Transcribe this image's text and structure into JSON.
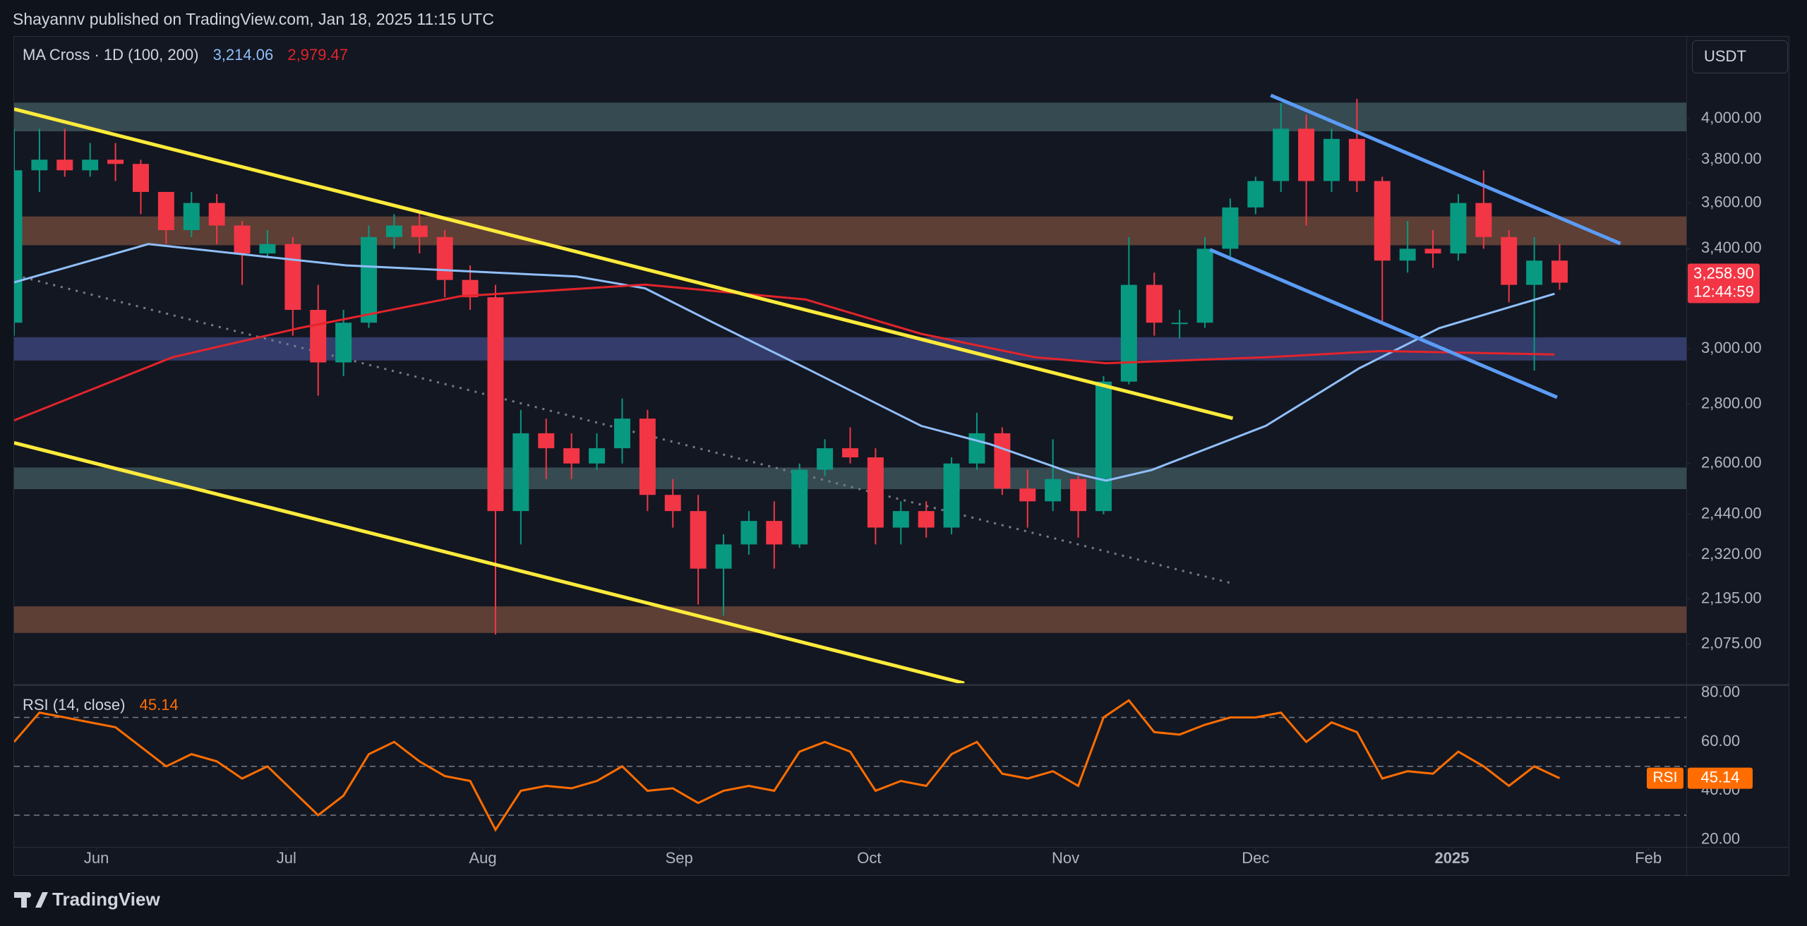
{
  "header": {
    "text": "Shayannv published on TradingView.com, Jan 18, 2025 11:15 UTC"
  },
  "footer": {
    "brand": "TradingView"
  },
  "chart_data": [
    {
      "type": "candlestick",
      "title": "MA Cross · 1D (100, 200)",
      "currency": "USDT",
      "log_scale": true,
      "grid": false,
      "up_color": "#089981",
      "down_color": "#f23645",
      "xlim": [
        0,
        66
      ],
      "xticks": [
        {
          "value": 3.25,
          "label": "Jun"
        },
        {
          "value": 10.75,
          "label": "Jul"
        },
        {
          "value": 18.5,
          "label": "Aug"
        },
        {
          "value": 26.25,
          "label": "Sep"
        },
        {
          "value": 33.75,
          "label": "Oct"
        },
        {
          "value": 41.5,
          "label": "Nov"
        },
        {
          "value": 49,
          "label": "Dec"
        },
        {
          "value": 56.75,
          "label": "2025"
        },
        {
          "value": 64.5,
          "label": "Feb"
        }
      ],
      "ylim": [
        1976,
        4431
      ],
      "yticks": [
        {
          "value": 4000,
          "label": "4,000.00"
        },
        {
          "value": 3800,
          "label": "3,800.00"
        },
        {
          "value": 3600,
          "label": "3,600.00"
        },
        {
          "value": 3400,
          "label": "3,400.00"
        },
        {
          "value": 3000,
          "label": "3,000.00"
        },
        {
          "value": 2800,
          "label": "2,800.00"
        },
        {
          "value": 2600,
          "label": "2,600.00"
        },
        {
          "value": 2440,
          "label": "2,440.00"
        },
        {
          "value": 2320,
          "label": "2,320.00"
        },
        {
          "value": 2195,
          "label": "2,195.00"
        },
        {
          "value": 2075,
          "label": "2,075.00"
        }
      ],
      "open": [
        3100,
        3750,
        3800,
        3750,
        3800,
        3780,
        3650,
        3480,
        3600,
        3500,
        3380,
        3420,
        3150,
        2950,
        3100,
        3450,
        3500,
        3450,
        3270,
        3200,
        2450,
        2700,
        2650,
        2600,
        2650,
        2750,
        2500,
        2450,
        2280,
        2350,
        2420,
        2350,
        2580,
        2650,
        2620,
        2400,
        2450,
        2400,
        2600,
        2700,
        2520,
        2480,
        2550,
        2450,
        2880,
        3250,
        3100,
        3100,
        3400,
        3580,
        3700,
        3950,
        3700,
        3900,
        3700,
        3350,
        3400,
        3380,
        3600,
        3450,
        3250,
        3350
      ],
      "high": [
        3950,
        3950,
        3950,
        3880,
        3880,
        3800,
        3650,
        3650,
        3640,
        3520,
        3480,
        3450,
        3250,
        3150,
        3500,
        3550,
        3560,
        3480,
        3330,
        3250,
        2780,
        2750,
        2700,
        2700,
        2820,
        2780,
        2550,
        2500,
        2380,
        2450,
        2480,
        2600,
        2680,
        2720,
        2650,
        2480,
        2480,
        2620,
        2770,
        2720,
        2580,
        2680,
        2560,
        2900,
        3450,
        3300,
        3150,
        3450,
        3620,
        3720,
        4080,
        4020,
        3950,
        4100,
        3720,
        3520,
        3480,
        3640,
        3750,
        3480,
        3450,
        3420
      ],
      "low": [
        3050,
        3650,
        3720,
        3720,
        3700,
        3550,
        3420,
        3450,
        3420,
        3250,
        3360,
        3050,
        2830,
        2900,
        3080,
        3400,
        3380,
        3200,
        3150,
        2100,
        2350,
        2550,
        2550,
        2580,
        2600,
        2450,
        2400,
        2180,
        2150,
        2320,
        2280,
        2340,
        2560,
        2600,
        2350,
        2350,
        2370,
        2380,
        2580,
        2500,
        2400,
        2450,
        2370,
        2440,
        2870,
        3050,
        3040,
        3080,
        3350,
        3550,
        3650,
        3500,
        3650,
        3650,
        3100,
        3300,
        3320,
        3350,
        3400,
        3180,
        2920,
        3230
      ],
      "close": [
        3750,
        3800,
        3750,
        3800,
        3780,
        3650,
        3480,
        3600,
        3500,
        3380,
        3420,
        3150,
        2950,
        3100,
        3450,
        3500,
        3450,
        3270,
        3200,
        2450,
        2700,
        2650,
        2600,
        2650,
        2750,
        2500,
        2450,
        2280,
        2350,
        2420,
        2350,
        2580,
        2650,
        2620,
        2400,
        2450,
        2400,
        2600,
        2700,
        2520,
        2480,
        2550,
        2450,
        2880,
        3250,
        3100,
        3100,
        3400,
        3580,
        3700,
        3950,
        3700,
        3900,
        3700,
        3350,
        3400,
        3380,
        3600,
        3450,
        3250,
        3350,
        3258.9
      ],
      "series": [
        {
          "name": "MA 100",
          "color": "#90bff9",
          "legend_label": "3,214.06",
          "x": [
            0,
            5.3,
            13.1,
            22.2,
            24.9,
            27.6,
            31.25,
            35.8,
            38.5,
            41.7,
            43.1,
            44.9,
            49.4,
            53.1,
            56.25,
            60.8
          ],
          "values": [
            3260,
            3420,
            3330,
            3284,
            3236,
            3100,
            2929,
            2725,
            2664,
            2571,
            2545,
            2579,
            2725,
            2929,
            3079,
            3214.06
          ]
        },
        {
          "name": "MA 200",
          "color": "#e3242b",
          "legend_label": "2,979.47",
          "x": [
            0,
            6.25,
            11.25,
            17.6,
            24.9,
            31.25,
            35.8,
            40.3,
            43.1,
            49.4,
            53.95,
            60.8
          ],
          "values": [
            2744,
            2969,
            3079,
            3204,
            3251,
            3191,
            3057,
            2969,
            2947,
            2969,
            2992,
            2979.47
          ]
        }
      ],
      "zones": [
        {
          "low": 3937,
          "high": 4081,
          "color": "#3d5459"
        },
        {
          "low": 3415,
          "high": 3540,
          "color": "#6b4638"
        },
        {
          "low": 2957,
          "high": 3044,
          "color": "#394378"
        },
        {
          "low": 2518,
          "high": 2587,
          "color": "#3d5459"
        },
        {
          "low": 2104,
          "high": 2175,
          "color": "#6b4638"
        }
      ],
      "trendlines": [
        {
          "x": [
            0,
            48.1
          ],
          "y": [
            4048,
            2751
          ],
          "color": "#ffeb3b",
          "dashed": false
        },
        {
          "x": [
            0,
            37.5
          ],
          "y": [
            2668,
            1976
          ],
          "color": "#ffeb3b",
          "dashed": false
        },
        {
          "x": [
            49.6,
            63.4
          ],
          "y": [
            4118,
            3422
          ],
          "color": "#5b9cf6",
          "dashed": false
        },
        {
          "x": [
            47.2,
            60.9
          ],
          "y": [
            3396,
            2824
          ],
          "color": "#5b9cf6",
          "dashed": false
        },
        {
          "x": [
            0.35,
            48.1
          ],
          "y": [
            3281,
            2238
          ],
          "color": "#787b86",
          "dashed": true
        }
      ],
      "last": {
        "value": 3258.9,
        "label": "3,258.90",
        "countdown": "12:44:59",
        "color": "#f23645"
      }
    },
    {
      "type": "line",
      "title": "RSI (14, close)",
      "tag": "RSI",
      "color": "#ff6d00",
      "ylim": [
        17,
        82
      ],
      "yticks": [
        {
          "value": 80,
          "label": "80.00"
        },
        {
          "value": 60,
          "label": "60.00"
        },
        {
          "value": 40,
          "label": "40.00"
        },
        {
          "value": 20,
          "label": "20.00"
        }
      ],
      "levels": [
        70,
        50,
        30
      ],
      "values": [
        60,
        72,
        70,
        68,
        66,
        58,
        50,
        55,
        52,
        45,
        50,
        40,
        30,
        38,
        55,
        60,
        52,
        46,
        44,
        24,
        40,
        42,
        41,
        44,
        50,
        40,
        41,
        35,
        40,
        42,
        40,
        56,
        60,
        56,
        40,
        44,
        42,
        55,
        60,
        47,
        45,
        48,
        42,
        70,
        77,
        64,
        63,
        67,
        70,
        70,
        72,
        60,
        68,
        64,
        45,
        48,
        47,
        56,
        50,
        42,
        50,
        45.14
      ]
    }
  ]
}
